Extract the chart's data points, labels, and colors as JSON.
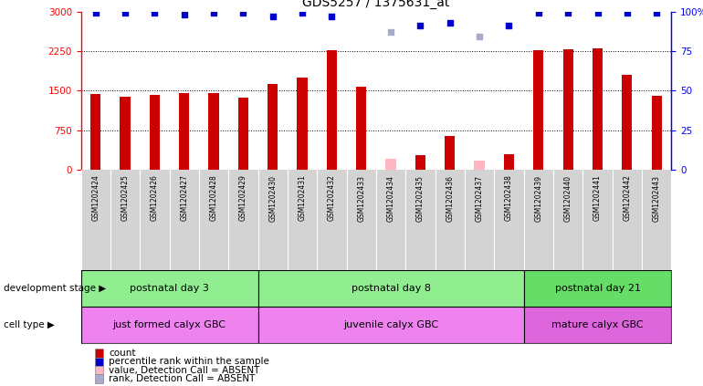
{
  "title": "GDS5257 / 1375631_at",
  "samples": [
    "GSM1202424",
    "GSM1202425",
    "GSM1202426",
    "GSM1202427",
    "GSM1202428",
    "GSM1202429",
    "GSM1202430",
    "GSM1202431",
    "GSM1202432",
    "GSM1202433",
    "GSM1202434",
    "GSM1202435",
    "GSM1202436",
    "GSM1202437",
    "GSM1202438",
    "GSM1202439",
    "GSM1202440",
    "GSM1202441",
    "GSM1202442",
    "GSM1202443"
  ],
  "counts": [
    1430,
    1390,
    1420,
    1460,
    1450,
    1370,
    1630,
    1750,
    2270,
    1580,
    null,
    280,
    640,
    null,
    290,
    2260,
    2280,
    2310,
    1800,
    1410
  ],
  "absent_counts": [
    null,
    null,
    null,
    null,
    null,
    null,
    null,
    null,
    null,
    null,
    210,
    null,
    null,
    175,
    null,
    null,
    null,
    null,
    null,
    null
  ],
  "ranks": [
    99,
    99,
    99,
    98,
    99,
    99,
    97,
    99,
    97,
    null,
    null,
    91,
    93,
    null,
    91,
    99,
    99,
    99,
    99,
    99
  ],
  "absent_ranks": [
    null,
    null,
    null,
    null,
    null,
    null,
    null,
    null,
    null,
    null,
    87,
    null,
    null,
    84,
    null,
    null,
    null,
    null,
    null,
    null
  ],
  "development_stage_groups": [
    {
      "label": "postnatal day 3",
      "start": 0,
      "end": 5,
      "color": "#90ee90"
    },
    {
      "label": "postnatal day 8",
      "start": 6,
      "end": 14,
      "color": "#90ee90"
    },
    {
      "label": "postnatal day 21",
      "start": 15,
      "end": 19,
      "color": "#66dd66"
    }
  ],
  "cell_type_groups": [
    {
      "label": "just formed calyx GBC",
      "start": 0,
      "end": 5,
      "color": "#ee82ee"
    },
    {
      "label": "juvenile calyx GBC",
      "start": 6,
      "end": 14,
      "color": "#ee82ee"
    },
    {
      "label": "mature calyx GBC",
      "start": 15,
      "end": 19,
      "color": "#dd66dd"
    }
  ],
  "ylim_left": [
    0,
    3000
  ],
  "ylim_right": [
    0,
    100
  ],
  "yticks_left": [
    0,
    750,
    1500,
    2250,
    3000
  ],
  "yticks_right": [
    0,
    25,
    50,
    75,
    100
  ],
  "bar_color": "#cc0000",
  "absent_bar_color": "#ffb6c1",
  "rank_color": "#0000cc",
  "absent_rank_color": "#aaaacc",
  "tick_area_color": "#d3d3d3",
  "dev_stage_label": "development stage",
  "cell_type_label": "cell type",
  "legend_items": [
    {
      "color": "#cc0000",
      "label": "count"
    },
    {
      "color": "#0000cc",
      "label": "percentile rank within the sample"
    },
    {
      "color": "#ffb6c1",
      "label": "value, Detection Call = ABSENT"
    },
    {
      "color": "#aaaacc",
      "label": "rank, Detection Call = ABSENT"
    }
  ]
}
